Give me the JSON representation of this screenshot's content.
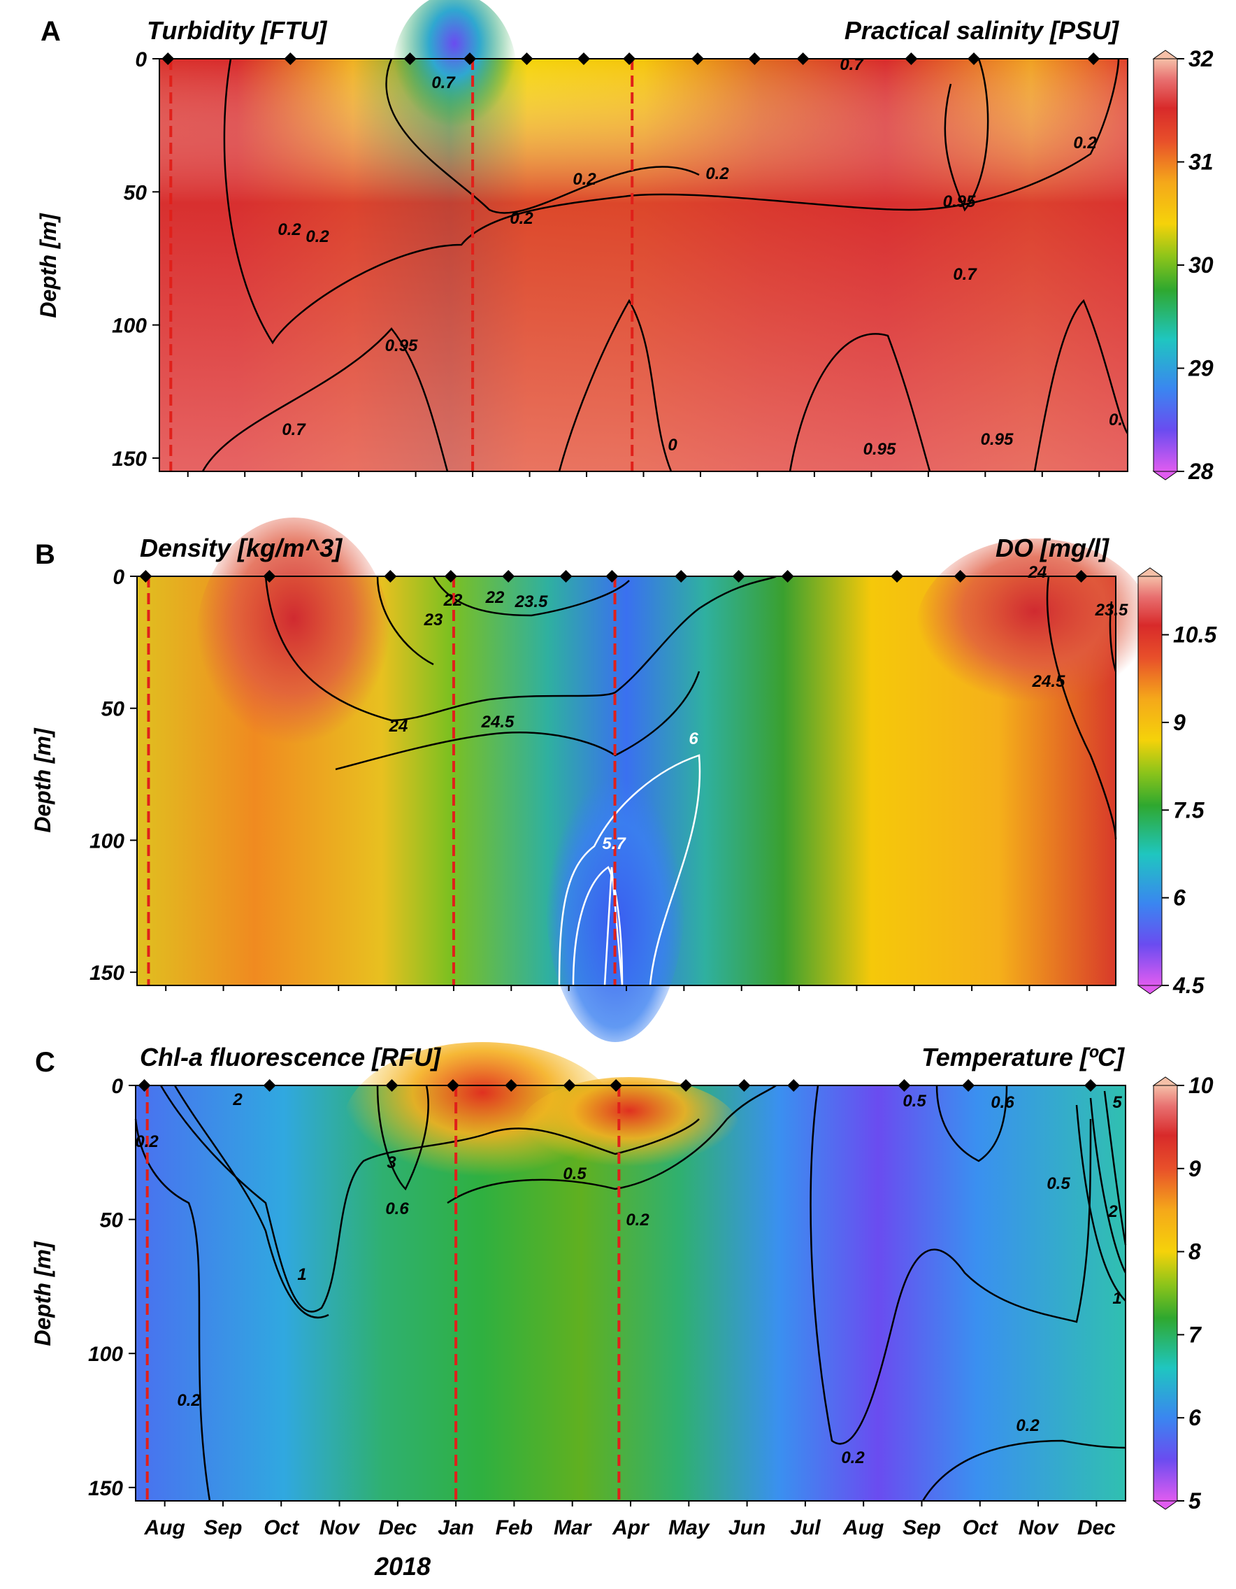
{
  "chart_data": [
    {
      "type": "heatmap",
      "panel": "A",
      "left_label": "Turbidity [FTU]",
      "right_label": "Practical salinity [PSU]",
      "ylabel": "Depth [m]",
      "y_ticks": [
        "0",
        "50",
        "100",
        "150"
      ],
      "ylim": [
        0,
        155
      ],
      "colorbar": {
        "ticks": [
          "32",
          "31",
          "30",
          "29",
          "28"
        ],
        "min": 28,
        "max": 32
      },
      "colors": [
        "#e05cf0",
        "#6a4cf0",
        "#3a86f0",
        "#1fc6c0",
        "#2fa82f",
        "#8cc41a",
        "#f5d20a",
        "#f5a81a",
        "#e8502a",
        "#d82a2a",
        "#e87070",
        "#f5c0a8"
      ],
      "contour_labels": [
        "0.7",
        "0.2",
        "0.2",
        "0.2",
        "0.2",
        "0.2",
        "0.7",
        "0.2",
        "0.95",
        "0.95",
        "0.7",
        "0.7",
        "0.95",
        "0.95",
        "0",
        "0."
      ]
    },
    {
      "type": "heatmap",
      "panel": "B",
      "left_label": "Density [kg/m^3]",
      "right_label": "DO [mg/l]",
      "ylabel": "Depth [m]",
      "y_ticks": [
        "0",
        "50",
        "100",
        "150"
      ],
      "ylim": [
        0,
        155
      ],
      "colorbar": {
        "ticks": [
          "10.5",
          "9",
          "7.5",
          "6",
          "4.5"
        ],
        "min": 4.5,
        "max": 11.5
      },
      "colors": [
        "#e05cf0",
        "#6a4cf0",
        "#3a86f0",
        "#1fc6c0",
        "#2fa82f",
        "#8cc41a",
        "#f5d20a",
        "#f5a81a",
        "#e8502a",
        "#d82a2a",
        "#e87070",
        "#f5c0a8"
      ],
      "contour_labels": [
        "23",
        "22",
        "22",
        "23.5",
        "24",
        "24.5",
        "6",
        "5.7",
        "24",
        "24.5",
        "23.5"
      ]
    },
    {
      "type": "heatmap",
      "panel": "C",
      "left_label": "Chl-a fluorescence [RFU]",
      "right_label": "Temperature [ºC]",
      "ylabel": "Depth [m]",
      "y_ticks": [
        "0",
        "50",
        "100",
        "150"
      ],
      "ylim": [
        0,
        155
      ],
      "colorbar": {
        "ticks": [
          "10",
          "9",
          "8",
          "7",
          "6",
          "5"
        ],
        "min": 5,
        "max": 10
      },
      "colors": [
        "#e05cf0",
        "#6a4cf0",
        "#3a86f0",
        "#1fc6c0",
        "#2fa82f",
        "#8cc41a",
        "#f5d20a",
        "#f5a81a",
        "#e8502a",
        "#d82a2a",
        "#e87070",
        "#f5c0a8"
      ],
      "contour_labels": [
        "0.2",
        "2",
        "3",
        "0.5",
        "0.2",
        "0.6",
        "1",
        "0.2",
        "0.2",
        "0.2",
        "0.5",
        "0.6",
        "0.5",
        "2",
        "1",
        "5"
      ]
    }
  ],
  "x_axis": {
    "ticks": [
      "Aug",
      "Sep",
      "Oct",
      "Nov",
      "Dec",
      "Jan",
      "Feb",
      "Mar",
      "Apr",
      "May",
      "Jun",
      "Jul",
      "Aug",
      "Sep",
      "Oct",
      "Nov",
      "Dec"
    ],
    "year_label": "2018"
  },
  "markers": {
    "sampling_dates": [
      "Aug",
      "Oct",
      "Dec",
      "Jan",
      "Feb",
      "Mar",
      "Apr",
      "May",
      "Jun",
      "Jul",
      "Sep",
      "Oct",
      "Dec"
    ],
    "dashed_lines": [
      "Aug",
      "Jan",
      "Apr"
    ],
    "dashed_color": "#e0201a"
  }
}
